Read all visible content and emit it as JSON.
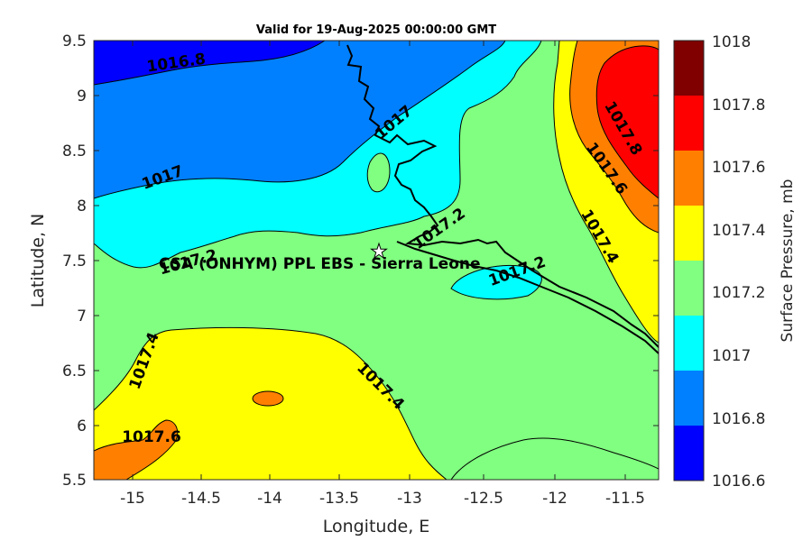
{
  "title": "Valid for 19-Aug-2025 00:00:00 GMT",
  "xlabel": "Longitude, E",
  "ylabel": "Latitude, N",
  "xticks": [
    "-15",
    "-14.5",
    "-14",
    "-13.5",
    "-13",
    "-12.5",
    "-12",
    "-11.5"
  ],
  "yticks": [
    "5.5",
    "6",
    "6.5",
    "7",
    "7.5",
    "8",
    "8.5",
    "9",
    "9.5"
  ],
  "xlim": [
    -15.25,
    -11.25
  ],
  "ylim": [
    5.5,
    9.5
  ],
  "site": {
    "label": "CSA (ONHYM) PPL EBS  - Sierra Leone",
    "lon": -13.22,
    "lat": 7.6
  },
  "contour_labels": [
    "1016.8",
    "1017",
    "1017",
    "1017.2",
    "1017.2",
    "1017.2",
    "1017.4",
    "1017.4",
    "1017.4",
    "1017.6",
    "1017.6",
    "1017.8"
  ],
  "colorbar": {
    "label": "Surface Pressure, mb",
    "ticks": [
      "1018",
      "1017.8",
      "1017.6",
      "1017.4",
      "1017.2",
      "1017",
      "1016.8",
      "1016.6"
    ],
    "levels": [
      1016.6,
      1016.8,
      1017.0,
      1017.2,
      1017.4,
      1017.6,
      1017.8,
      1018.0
    ],
    "colors": [
      "#0000ff",
      "#0080ff",
      "#00ffff",
      "#80ff80",
      "#ffff00",
      "#ff8000",
      "#ff0000",
      "#800000"
    ]
  }
}
